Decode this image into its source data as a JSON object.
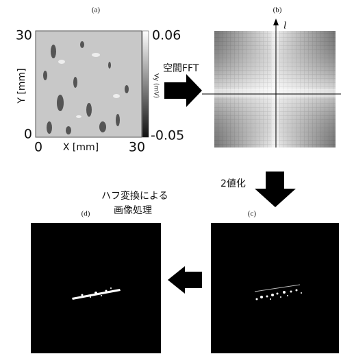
{
  "panels": {
    "a": {
      "label": "(a)",
      "y_axis_title": "Y [mm]",
      "y_ticks": [
        "30",
        "0"
      ],
      "x_axis_title": "X [mm]",
      "x_ticks": [
        "0",
        "30"
      ],
      "colorbar": {
        "title": "Vy (mV)",
        "max_label": "0.06",
        "min_label": "-0.05"
      }
    },
    "b": {
      "label": "(b)",
      "axis_label": "l"
    },
    "c": {
      "label": "(c)"
    },
    "d": {
      "label": "(d)"
    }
  },
  "steps": [
    {
      "lines": [
        "空間FFT"
      ]
    },
    {
      "lines": [
        "2値化"
      ]
    },
    {
      "lines": [
        "ハフ変換による",
        "画像処理"
      ]
    }
  ]
}
